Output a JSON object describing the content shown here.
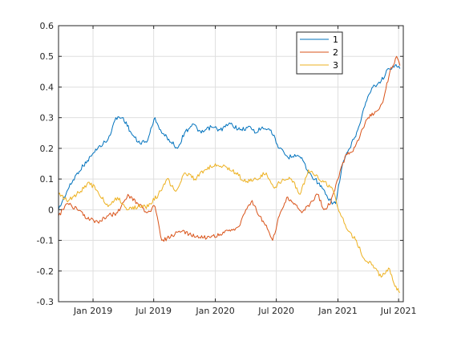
{
  "chart_data": {
    "type": "line",
    "title": "",
    "xlabel": "",
    "ylabel": "",
    "x_range": [
      "2018-09-20",
      "2021-07-15"
    ],
    "ylim": [
      -0.3,
      0.6
    ],
    "yticks": [
      -0.3,
      -0.2,
      -0.1,
      0,
      0.1,
      0.2,
      0.3,
      0.4,
      0.5,
      0.6
    ],
    "ytick_labels": [
      "-0.3",
      "-0.2",
      "-0.1",
      "0",
      "0.1",
      "0.2",
      "0.3",
      "0.4",
      "0.5",
      "0.6"
    ],
    "xticks": [
      {
        "date": "2019-01-01",
        "label": "Jan 2019"
      },
      {
        "date": "2019-07-01",
        "label": "Jul 2019"
      },
      {
        "date": "2020-01-01",
        "label": "Jan 2020"
      },
      {
        "date": "2020-07-01",
        "label": "Jul 2020"
      },
      {
        "date": "2021-01-01",
        "label": "Jan 2021"
      },
      {
        "date": "2021-07-01",
        "label": "Jul 2021"
      }
    ],
    "grid": true,
    "legend_position": "top-right",
    "series": [
      {
        "name": "1",
        "color": "#0072BD",
        "x": [
          "2018-09-20",
          "2018-10-15",
          "2018-11-15",
          "2018-12-15",
          "2019-01-15",
          "2019-02-15",
          "2019-03-10",
          "2019-04-01",
          "2019-04-25",
          "2019-05-15",
          "2019-06-10",
          "2019-07-05",
          "2019-07-25",
          "2019-08-15",
          "2019-09-10",
          "2019-10-01",
          "2019-10-25",
          "2019-11-20",
          "2019-12-20",
          "2020-01-15",
          "2020-02-15",
          "2020-03-15",
          "2020-04-15",
          "2020-05-01",
          "2020-05-20",
          "2020-06-15",
          "2020-07-10",
          "2020-08-05",
          "2020-08-25",
          "2020-09-15",
          "2020-10-05",
          "2020-10-25",
          "2020-11-15",
          "2020-12-05",
          "2020-12-25",
          "2021-01-15",
          "2021-02-05",
          "2021-03-01",
          "2021-03-25",
          "2021-04-15",
          "2021-05-10",
          "2021-06-01",
          "2021-06-20",
          "2021-07-05"
        ],
        "values": [
          0.0,
          0.06,
          0.12,
          0.16,
          0.2,
          0.23,
          0.3,
          0.3,
          0.25,
          0.22,
          0.22,
          0.3,
          0.25,
          0.23,
          0.2,
          0.25,
          0.28,
          0.25,
          0.27,
          0.26,
          0.28,
          0.26,
          0.27,
          0.25,
          0.27,
          0.26,
          0.2,
          0.17,
          0.18,
          0.17,
          0.12,
          0.1,
          0.07,
          0.03,
          0.02,
          0.15,
          0.2,
          0.26,
          0.35,
          0.4,
          0.42,
          0.46,
          0.47,
          0.46
        ]
      },
      {
        "name": "2",
        "color": "#D95319",
        "x": [
          "2018-09-20",
          "2018-10-15",
          "2018-11-15",
          "2018-12-15",
          "2019-01-15",
          "2019-02-15",
          "2019-03-15",
          "2019-04-15",
          "2019-05-15",
          "2019-06-10",
          "2019-07-05",
          "2019-07-25",
          "2019-08-20",
          "2019-09-15",
          "2019-10-15",
          "2019-11-15",
          "2019-12-15",
          "2020-01-15",
          "2020-02-15",
          "2020-03-15",
          "2020-04-01",
          "2020-04-20",
          "2020-05-10",
          "2020-06-01",
          "2020-06-20",
          "2020-07-10",
          "2020-08-01",
          "2020-08-25",
          "2020-09-15",
          "2020-10-10",
          "2020-11-01",
          "2020-11-20",
          "2020-12-10",
          "2021-01-01",
          "2021-01-25",
          "2021-02-15",
          "2021-03-10",
          "2021-04-01",
          "2021-04-25",
          "2021-05-15",
          "2021-06-05",
          "2021-06-25",
          "2021-07-05"
        ],
        "values": [
          -0.02,
          0.02,
          0.0,
          -0.03,
          -0.04,
          -0.02,
          -0.01,
          0.05,
          0.02,
          -0.01,
          0.01,
          -0.1,
          -0.09,
          -0.07,
          -0.08,
          -0.09,
          -0.09,
          -0.08,
          -0.07,
          -0.05,
          0.0,
          0.03,
          -0.02,
          -0.05,
          -0.1,
          -0.02,
          0.04,
          0.02,
          -0.01,
          0.02,
          0.05,
          0.0,
          0.02,
          0.1,
          0.18,
          0.19,
          0.25,
          0.3,
          0.32,
          0.35,
          0.45,
          0.5,
          0.47
        ]
      },
      {
        "name": "3",
        "color": "#EDB120",
        "x": [
          "2018-09-20",
          "2018-10-20",
          "2018-11-25",
          "2018-12-20",
          "2019-01-15",
          "2019-02-15",
          "2019-03-15",
          "2019-04-15",
          "2019-05-15",
          "2019-06-15",
          "2019-07-15",
          "2019-08-10",
          "2019-09-05",
          "2019-10-01",
          "2019-11-01",
          "2019-12-01",
          "2020-01-01",
          "2020-02-01",
          "2020-03-01",
          "2020-04-01",
          "2020-05-01",
          "2020-06-01",
          "2020-06-25",
          "2020-07-20",
          "2020-08-15",
          "2020-09-10",
          "2020-10-05",
          "2020-10-25",
          "2020-11-20",
          "2020-12-15",
          "2021-01-10",
          "2021-02-01",
          "2021-02-25",
          "2021-03-20",
          "2021-04-15",
          "2021-05-10",
          "2021-06-01",
          "2021-06-20",
          "2021-07-05"
        ],
        "values": [
          0.05,
          0.03,
          0.06,
          0.09,
          0.06,
          0.01,
          0.04,
          0.0,
          0.01,
          0.01,
          0.05,
          0.1,
          0.06,
          0.12,
          0.1,
          0.13,
          0.15,
          0.14,
          0.12,
          0.09,
          0.1,
          0.12,
          0.07,
          0.1,
          0.1,
          0.05,
          0.13,
          0.11,
          0.09,
          0.07,
          -0.02,
          -0.07,
          -0.1,
          -0.16,
          -0.18,
          -0.22,
          -0.19,
          -0.25,
          -0.27
        ]
      }
    ]
  }
}
